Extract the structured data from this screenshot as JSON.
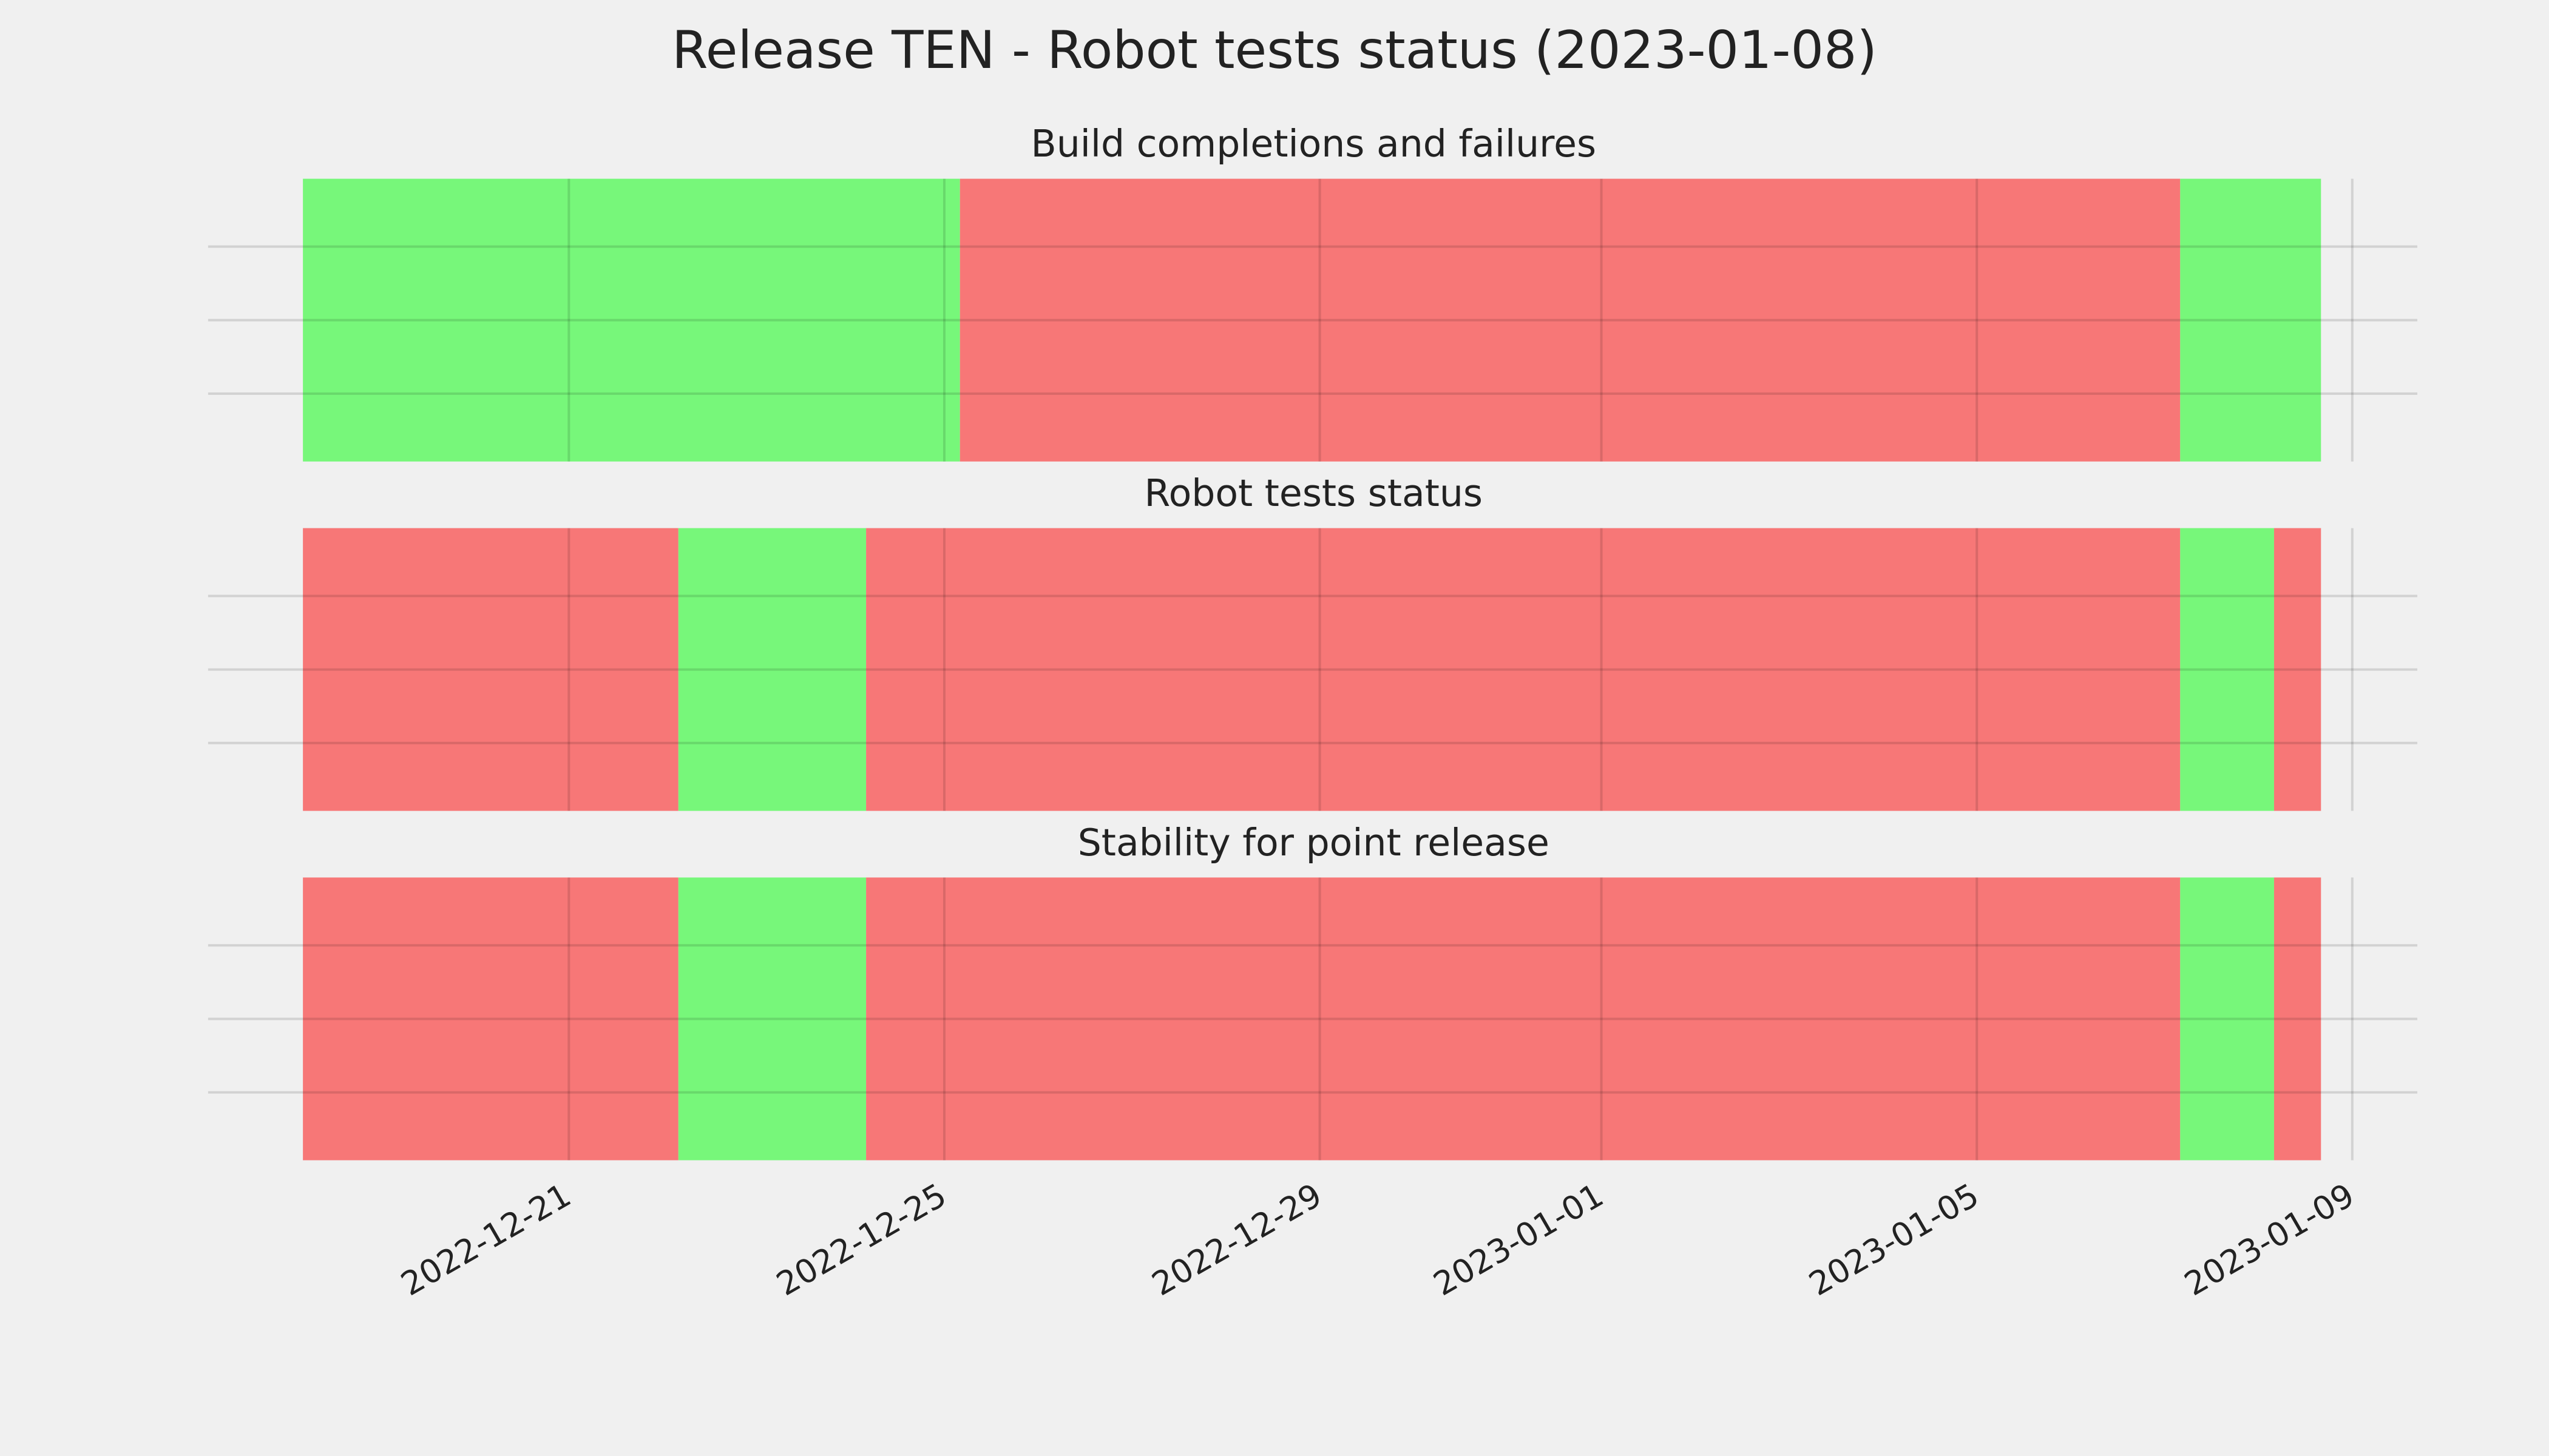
{
  "chart_data": {
    "type": "timeline",
    "title": "Release TEN - Robot tests status (2023-01-08)",
    "xlim": [
      "2022-12-17T03:45",
      "2023-01-09T16:38"
    ],
    "xticks": [
      "2022-12-21",
      "2022-12-25",
      "2022-12-29",
      "2023-01-01",
      "2023-01-05",
      "2023-01-09"
    ],
    "grid": true,
    "panels": [
      {
        "title": "Build completions and failures",
        "segments": [
          {
            "start": "2022-12-18T04:00",
            "end": "2022-12-25T04:00",
            "color": "#77f77a"
          },
          {
            "start": "2022-12-25T04:00",
            "end": "2023-01-07T04:00",
            "color": "#f77777"
          },
          {
            "start": "2023-01-07T04:00",
            "end": "2023-01-08T16:00",
            "color": "#77f77a"
          }
        ]
      },
      {
        "title": "Robot tests status",
        "segments": [
          {
            "start": "2022-12-18T04:00",
            "end": "2022-12-22T04:00",
            "color": "#f77777"
          },
          {
            "start": "2022-12-22T04:00",
            "end": "2022-12-24T04:00",
            "color": "#77f77a"
          },
          {
            "start": "2022-12-24T04:00",
            "end": "2023-01-07T04:00",
            "color": "#f77777"
          },
          {
            "start": "2023-01-07T04:00",
            "end": "2023-01-08T04:00",
            "color": "#77f77a"
          },
          {
            "start": "2023-01-08T04:00",
            "end": "2023-01-08T16:00",
            "color": "#f77777"
          }
        ]
      },
      {
        "title": "Stability for point release",
        "segments": [
          {
            "start": "2022-12-18T04:00",
            "end": "2022-12-22T04:00",
            "color": "#f77777"
          },
          {
            "start": "2022-12-22T04:00",
            "end": "2022-12-24T04:00",
            "color": "#77f77a"
          },
          {
            "start": "2022-12-24T04:00",
            "end": "2023-01-07T04:00",
            "color": "#f77777"
          },
          {
            "start": "2023-01-07T04:00",
            "end": "2023-01-08T04:00",
            "color": "#77f77a"
          },
          {
            "start": "2023-01-08T04:00",
            "end": "2023-01-08T16:00",
            "color": "#f77777"
          }
        ]
      }
    ]
  }
}
